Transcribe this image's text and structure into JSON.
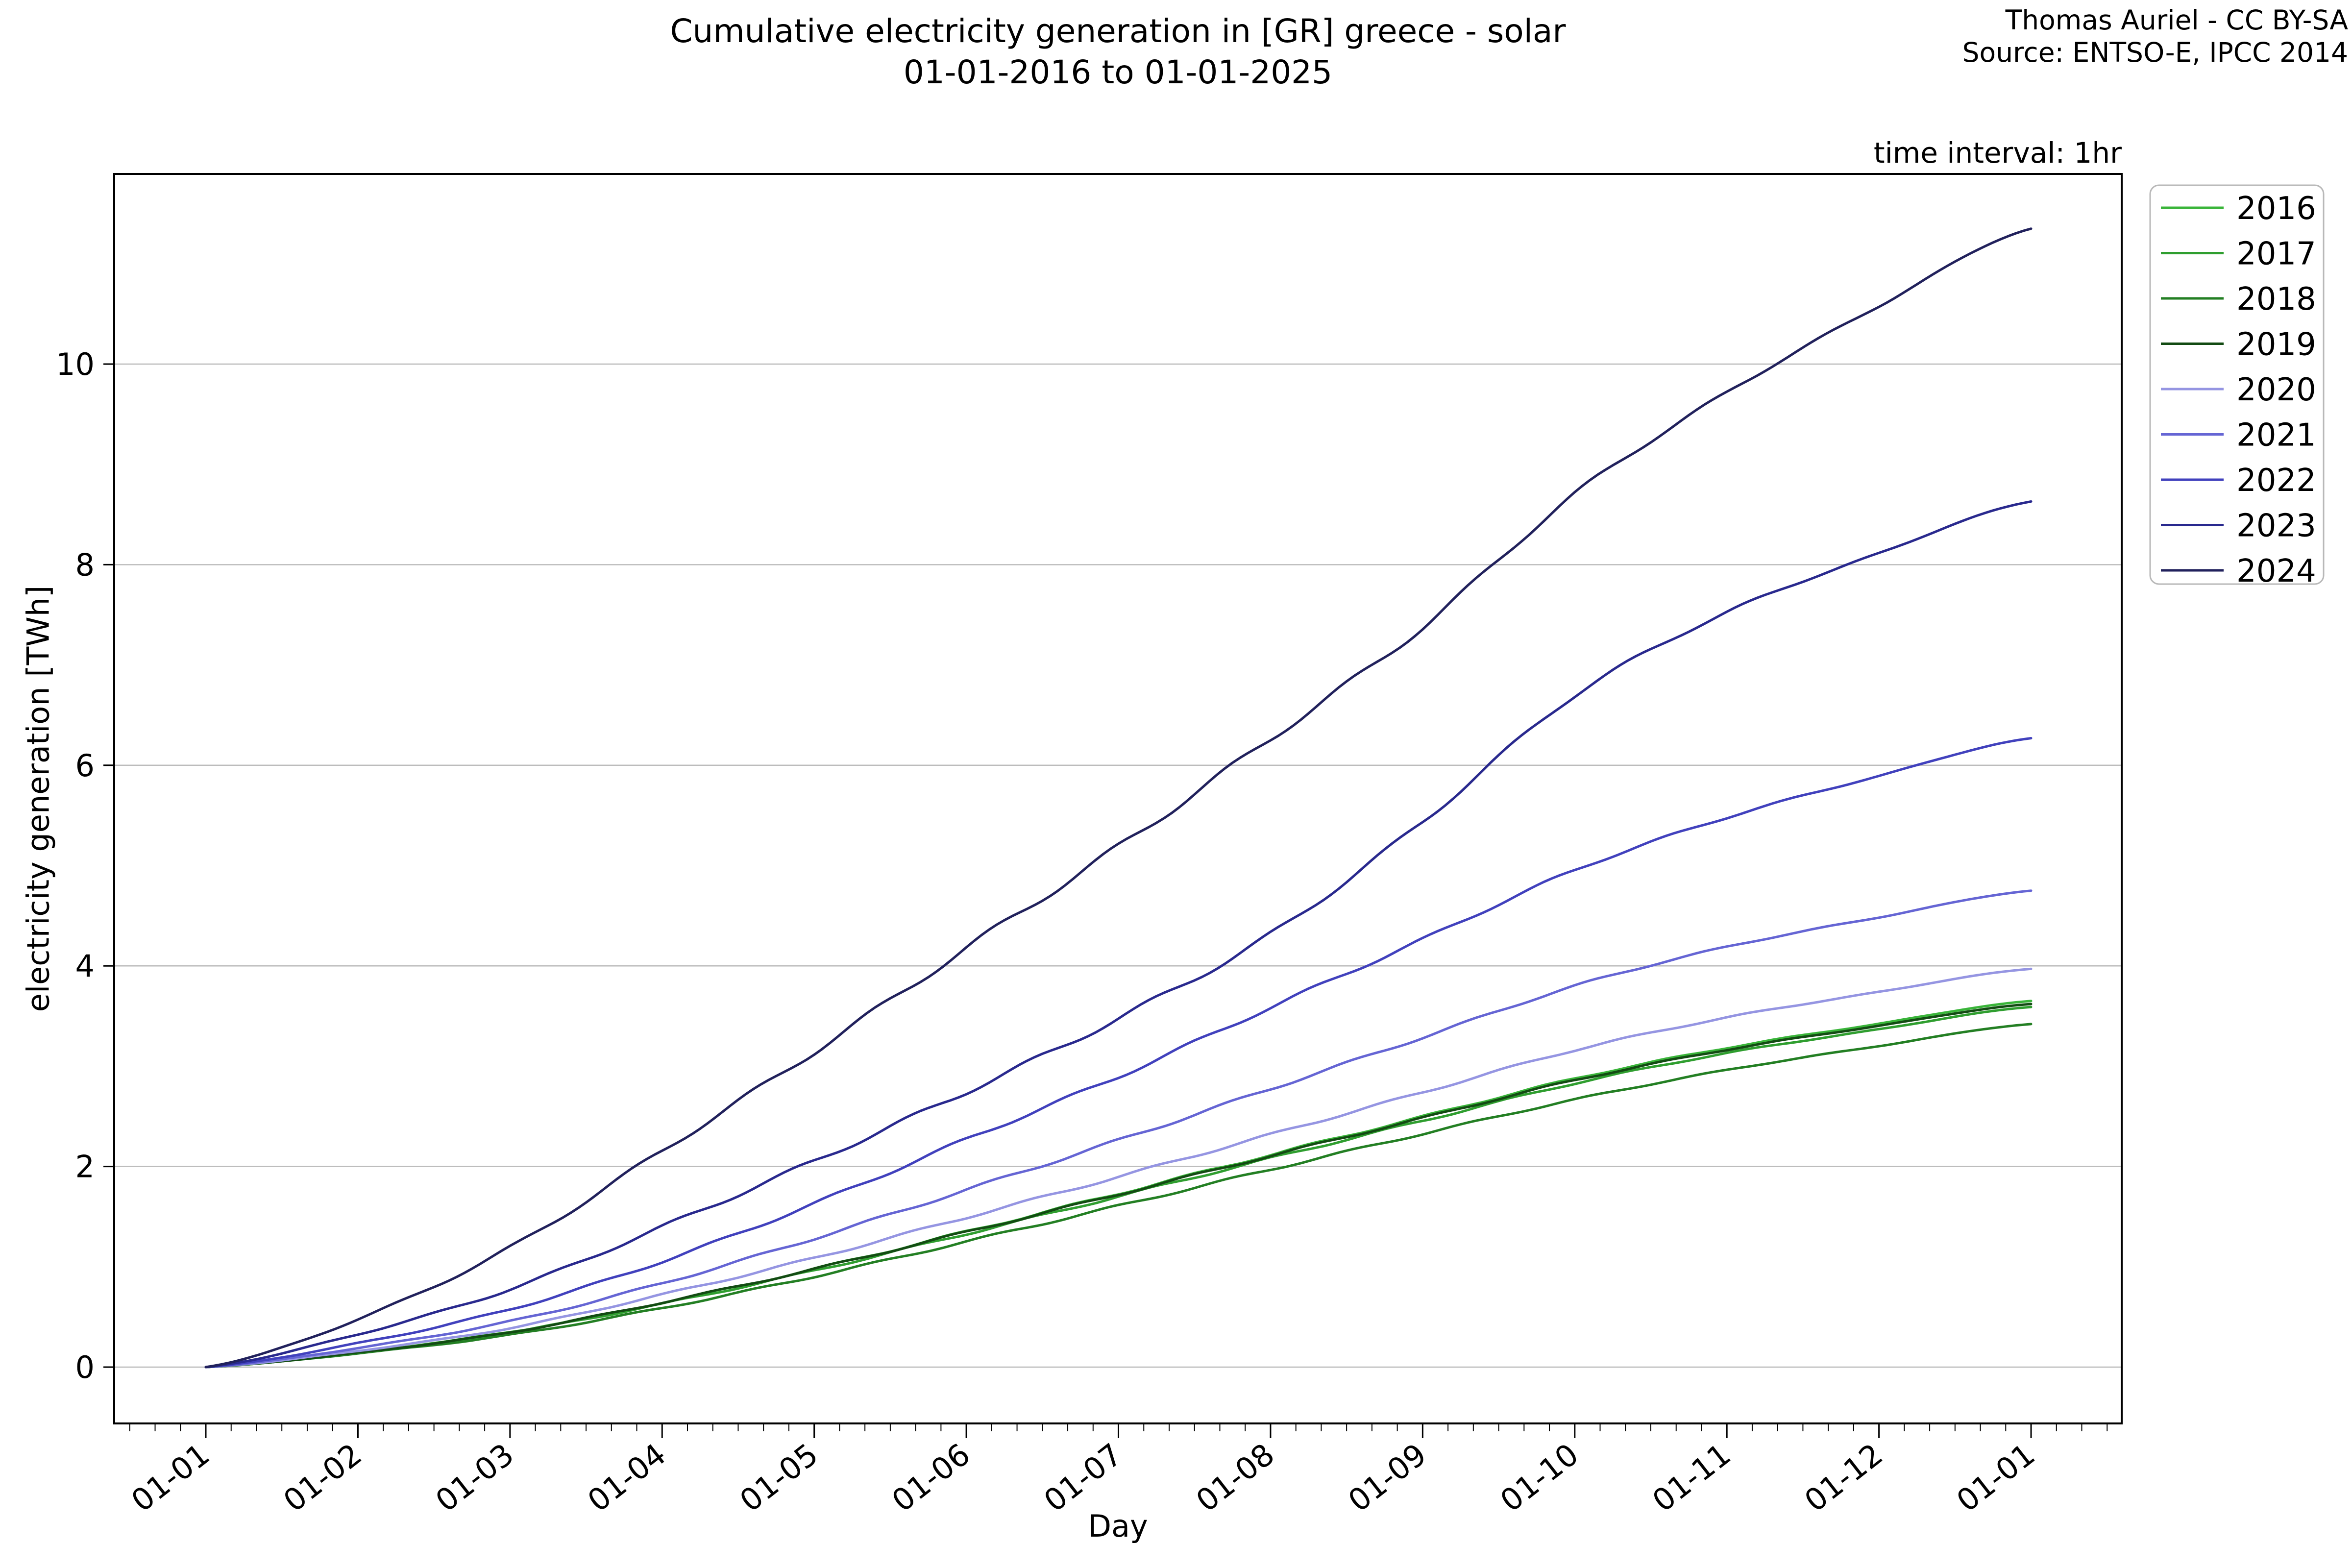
{
  "header": {
    "title_line1": "Cumulative electricity generation in [GR] greece - solar",
    "title_line2": "01-01-2016 to 01-01-2025",
    "attribution_line1": "Thomas Auriel - CC BY-SA",
    "attribution_line2": "Source: ENTSO-E, IPCC 2014",
    "time_interval_label": "time interval: 1hr"
  },
  "chart_data": {
    "type": "line",
    "title": "Cumulative electricity generation in [GR] greece - solar 01-01-2016 to 01-01-2025",
    "xlabel": "Day",
    "ylabel": "electricity generation [TWh]",
    "x_tick_labels": [
      "01-01",
      "01-02",
      "01-03",
      "01-04",
      "01-05",
      "01-06",
      "01-07",
      "01-08",
      "01-09",
      "01-10",
      "01-11",
      "01-12",
      "01-01"
    ],
    "y_ticks": [
      0,
      2,
      4,
      6,
      8,
      10
    ],
    "y_tick_labels": [
      "0",
      "2",
      "4",
      "6",
      "8",
      "10"
    ],
    "ylim": [
      -0.57,
      11.95
    ],
    "grid": "horizontal-only",
    "legend_position": "upper right, outside plot",
    "series": [
      {
        "name": "2016",
        "color": "#3ab53a",
        "final_twh": 3.65,
        "monthly_cumulative_fraction": [
          0,
          0.04,
          0.096,
          0.176,
          0.268,
          0.37,
          0.474,
          0.58,
          0.684,
          0.788,
          0.872,
          0.938,
          1.0
        ]
      },
      {
        "name": "2017",
        "color": "#2f9e2f",
        "final_twh": 3.59,
        "monthly_cumulative_fraction": [
          0,
          0.04,
          0.096,
          0.176,
          0.268,
          0.37,
          0.474,
          0.58,
          0.684,
          0.788,
          0.872,
          0.938,
          1.0
        ]
      },
      {
        "name": "2018",
        "color": "#237f23",
        "final_twh": 3.42,
        "monthly_cumulative_fraction": [
          0,
          0.04,
          0.094,
          0.172,
          0.264,
          0.366,
          0.47,
          0.576,
          0.68,
          0.78,
          0.866,
          0.936,
          1.0
        ]
      },
      {
        "name": "2019",
        "color": "#134b13",
        "final_twh": 3.62,
        "monthly_cumulative_fraction": [
          0,
          0.04,
          0.096,
          0.178,
          0.27,
          0.372,
          0.476,
          0.582,
          0.686,
          0.79,
          0.874,
          0.94,
          1.0
        ]
      },
      {
        "name": "2020",
        "color": "#9595e2",
        "final_twh": 3.97,
        "monthly_cumulative_fraction": [
          0,
          0.041,
          0.098,
          0.182,
          0.274,
          0.376,
          0.478,
          0.584,
          0.69,
          0.796,
          0.878,
          0.942,
          1.0
        ]
      },
      {
        "name": "2021",
        "color": "#6565d4",
        "final_twh": 4.75,
        "monthly_cumulative_fraction": [
          0,
          0.04,
          0.096,
          0.176,
          0.27,
          0.372,
          0.476,
          0.584,
          0.692,
          0.8,
          0.882,
          0.944,
          1.0
        ]
      },
      {
        "name": "2022",
        "color": "#4141bd",
        "final_twh": 6.27,
        "monthly_cumulative_fraction": [
          0,
          0.038,
          0.092,
          0.168,
          0.26,
          0.362,
          0.462,
          0.572,
          0.68,
          0.79,
          0.874,
          0.94,
          1.0
        ]
      },
      {
        "name": "2023",
        "color": "#29298e",
        "final_twh": 8.63,
        "monthly_cumulative_fraction": [
          0,
          0.038,
          0.09,
          0.162,
          0.238,
          0.318,
          0.403,
          0.5,
          0.63,
          0.776,
          0.872,
          0.94,
          1.0
        ]
      },
      {
        "name": "2024",
        "color": "#21215c",
        "final_twh": 11.35,
        "monthly_cumulative_fraction": [
          0,
          0.042,
          0.105,
          0.19,
          0.277,
          0.368,
          0.457,
          0.552,
          0.65,
          0.767,
          0.856,
          0.932,
          1.0
        ]
      }
    ]
  },
  "colors": {
    "grid": "#bcbcbc",
    "spine": "#000000",
    "background": "#ffffff",
    "legend_border": "#b8b8b8"
  }
}
